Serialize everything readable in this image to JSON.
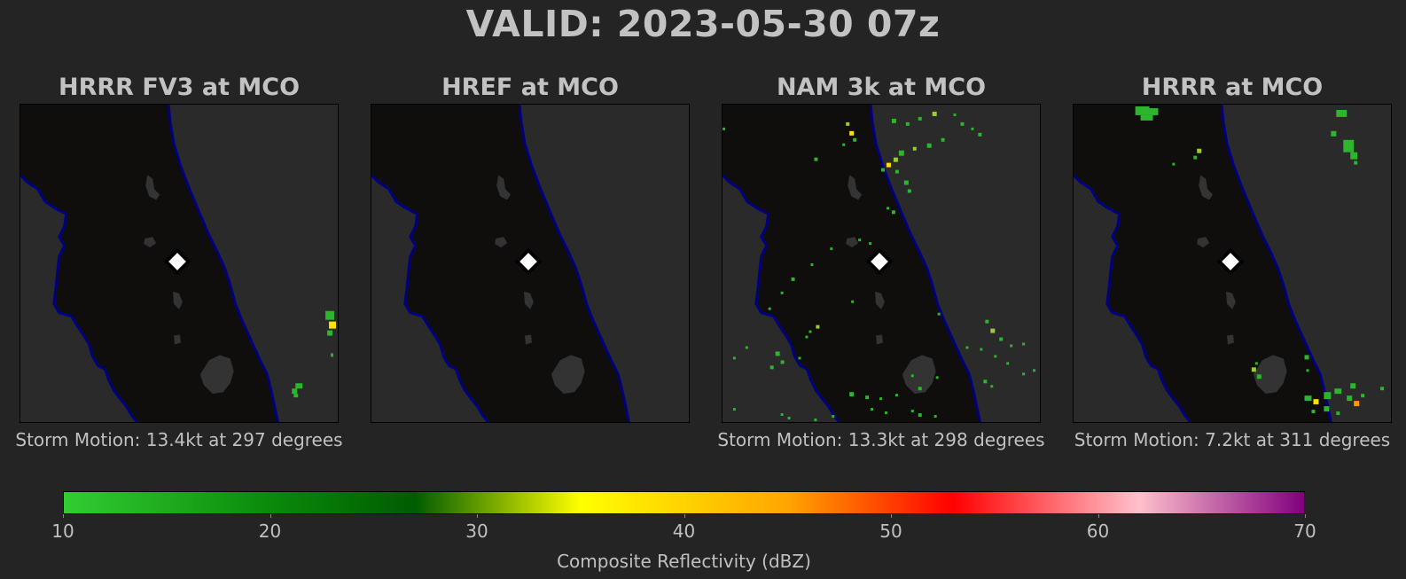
{
  "title": "VALID: 2023-05-30 07z",
  "panels": [
    {
      "title": "HRRR FV3 at MCO",
      "caption": "Storm Motion: 13.4kt at 297 degrees"
    },
    {
      "title": "HREF at MCO",
      "caption": ""
    },
    {
      "title": "NAM 3k at MCO",
      "caption": "Storm Motion: 13.3kt at 298 degrees"
    },
    {
      "title": "HRRR at MCO",
      "caption": "Storm Motion: 7.2kt at 311 degrees"
    }
  ],
  "station_marker": "MCO",
  "colorbar": {
    "label": "Composite Reflectivity (dBZ)",
    "ticks": [
      "10",
      "20",
      "30",
      "40",
      "50",
      "60",
      "70"
    ],
    "range": [
      10,
      70
    ],
    "stops": [
      {
        "value": 10,
        "color": "#32cd32"
      },
      {
        "value": 20,
        "color": "#0a8a0a"
      },
      {
        "value": 27,
        "color": "#005c00"
      },
      {
        "value": 35,
        "color": "#ffff00"
      },
      {
        "value": 42,
        "color": "#ffc000"
      },
      {
        "value": 45,
        "color": "#ffa500"
      },
      {
        "value": 53,
        "color": "#ff0000"
      },
      {
        "value": 62,
        "color": "#ffc0cb"
      },
      {
        "value": 70,
        "color": "#800080"
      }
    ]
  },
  "colors": {
    "background": "#242424",
    "land": "#100d0d",
    "ocean": "#2a2a2a",
    "coastline": "#000080",
    "lakes": "#333333",
    "marker_fill": "#ffffff",
    "marker_edge": "#000000"
  }
}
